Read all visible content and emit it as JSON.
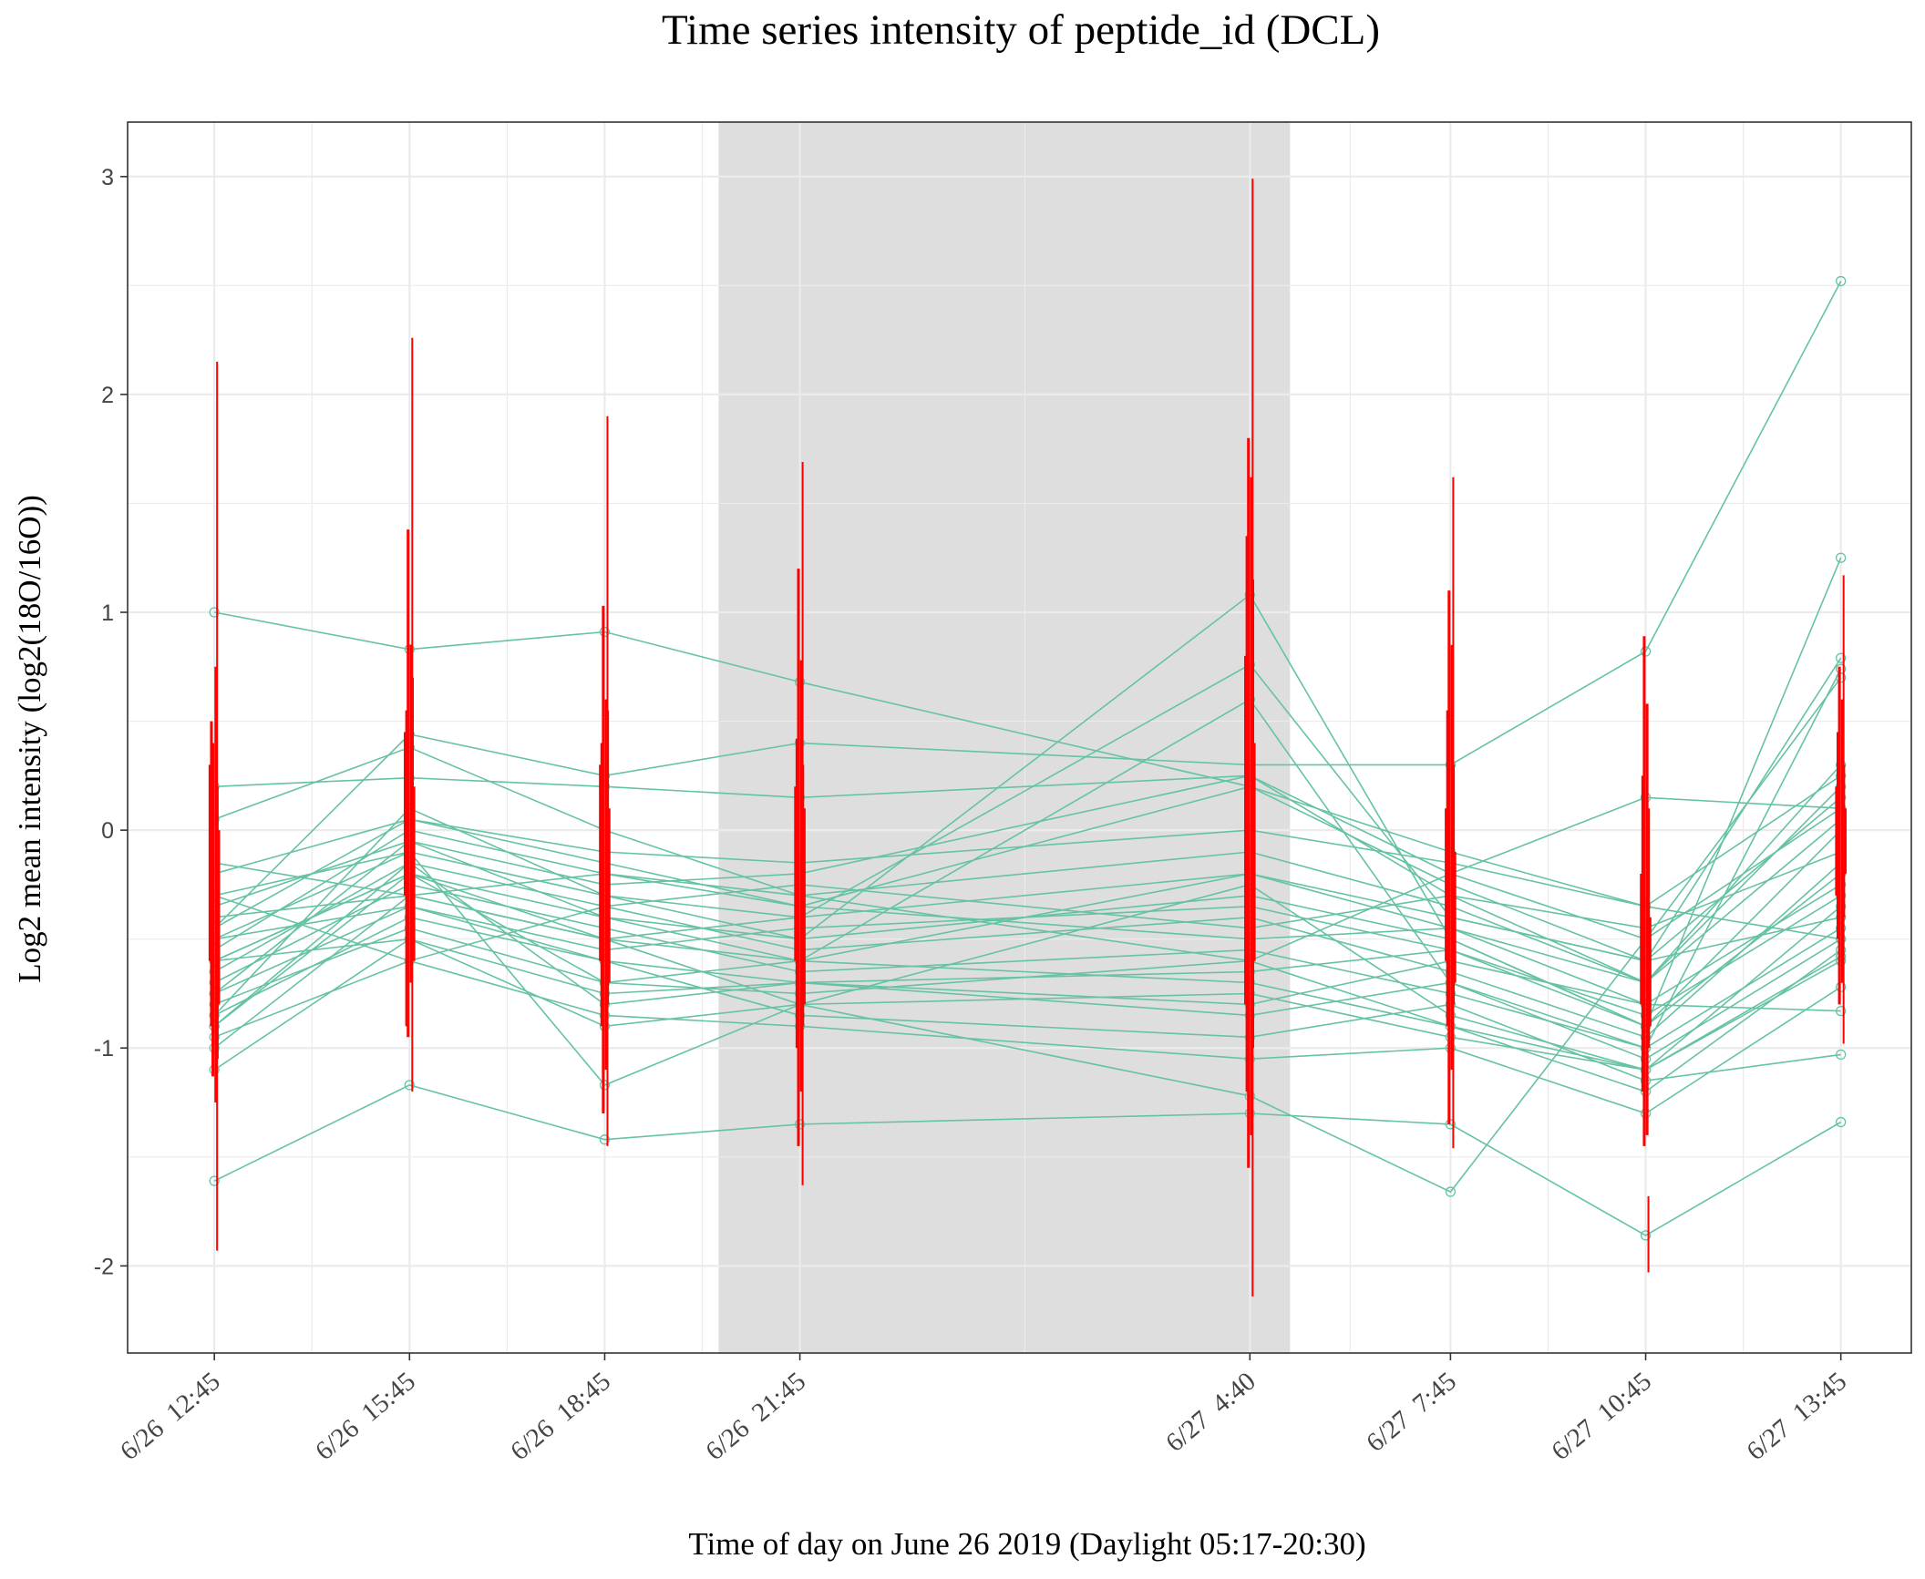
{
  "colors": {
    "series_line": "#66c2a5",
    "error_bar": "#ff0000",
    "night_band": "#dcdcdc",
    "grid": "#ebebeb",
    "panel_border": "#333333"
  },
  "chart_data": {
    "type": "line",
    "title": "Time series intensity of peptide_id (DCL)",
    "xlabel": "Time of day on June 26 2019 (Daylight 05:17-20:30)",
    "ylabel": "Log2 mean intensity (log2(18O/16O))",
    "x": [
      "2019-06-26 12:45",
      "2019-06-26 15:45",
      "2019-06-26 18:45",
      "2019-06-26 21:45",
      "2019-06-27 04:40",
      "2019-06-27 07:45",
      "2019-06-27 10:45",
      "2019-06-27 13:45"
    ],
    "x_tick_labels": [
      "6/26  12:45",
      "6/26  15:45",
      "6/26  18:45",
      "6/26  21:45",
      "6/27  4:40",
      "6/27  7:45",
      "6/27  10:45",
      "6/27  13:45"
    ],
    "xlim": [
      "2019-06-26 11:25",
      "2019-06-27 14:50"
    ],
    "ylim": [
      -2.4,
      3.25
    ],
    "y_ticks": [
      -2,
      -1,
      0,
      1,
      2,
      3
    ],
    "shaded_region": {
      "from": "2019-06-26 20:30",
      "to": "2019-06-27 05:17",
      "label": ""
    },
    "grid": true,
    "legend": "none",
    "series": [
      {
        "values": [
          1.0,
          0.83,
          0.91,
          0.68,
          0.2,
          -0.1,
          -0.35,
          -0.5
        ]
      },
      {
        "values": [
          -1.61,
          -1.17,
          -1.42,
          -1.35,
          -1.3,
          -1.35,
          -1.86,
          -1.34
        ]
      },
      {
        "values": [
          0.2,
          0.24,
          0.2,
          0.15,
          0.25,
          -0.3,
          -0.7,
          0.2
        ]
      },
      {
        "values": [
          -0.45,
          0.44,
          0.25,
          0.4,
          0.3,
          0.3,
          0.82,
          2.52
        ]
      },
      {
        "values": [
          -0.85,
          0.1,
          -0.3,
          -0.5,
          1.08,
          -0.5,
          -0.9,
          1.25
        ]
      },
      {
        "values": [
          -0.6,
          -0.2,
          -0.5,
          -0.4,
          0.76,
          -0.4,
          -0.6,
          0.79
        ]
      },
      {
        "values": [
          -0.9,
          -0.2,
          -0.7,
          -0.6,
          0.6,
          -0.7,
          -1.0,
          0.74
        ]
      },
      {
        "values": [
          -0.5,
          -0.1,
          -1.17,
          -0.8,
          -1.22,
          -1.66,
          -0.5,
          0.7
        ]
      },
      {
        "values": [
          -0.75,
          -0.35,
          -0.6,
          -0.85,
          -0.95,
          -0.8,
          -1.15,
          -1.03
        ]
      },
      {
        "values": [
          -1.1,
          -0.5,
          -0.75,
          -0.7,
          -0.8,
          -0.6,
          -0.8,
          -0.83
        ]
      },
      {
        "values": [
          -0.3,
          -0.1,
          -0.3,
          -0.4,
          -0.2,
          -0.4,
          -0.6,
          -0.4
        ]
      },
      {
        "values": [
          -0.4,
          -0.3,
          -0.5,
          -0.6,
          -0.7,
          -0.9,
          -1.1,
          -0.6
        ]
      },
      {
        "values": [
          -0.6,
          -0.2,
          -0.4,
          -0.5,
          -0.3,
          -0.5,
          -0.9,
          -0.2
        ]
      },
      {
        "values": [
          -0.55,
          0.0,
          -0.2,
          -0.3,
          -0.1,
          -0.35,
          -0.7,
          0.05
        ]
      },
      {
        "values": [
          -0.7,
          -0.25,
          -0.45,
          -0.65,
          -0.55,
          -0.75,
          -1.0,
          -0.45
        ]
      },
      {
        "values": [
          -0.8,
          -0.45,
          -0.7,
          -0.75,
          -0.6,
          -0.9,
          -1.2,
          -0.55
        ]
      },
      {
        "values": [
          -0.35,
          -0.05,
          -0.25,
          -0.2,
          0.25,
          -0.2,
          -0.5,
          0.1
        ]
      },
      {
        "values": [
          -0.95,
          -0.6,
          -0.85,
          -0.9,
          -1.05,
          -1.0,
          -1.3,
          -0.72
        ]
      },
      {
        "values": [
          -0.2,
          0.05,
          -0.1,
          -0.15,
          0.0,
          -0.15,
          -0.35,
          0.25
        ]
      },
      {
        "values": [
          -0.5,
          -0.35,
          -0.55,
          -0.45,
          -0.35,
          -0.55,
          -0.85,
          -0.3
        ]
      },
      {
        "values": [
          -0.65,
          -0.15,
          -0.35,
          -0.55,
          -0.4,
          -0.65,
          -0.95,
          -0.15
        ]
      },
      {
        "values": [
          -0.85,
          -0.4,
          -0.6,
          -0.7,
          -0.85,
          -0.7,
          -1.05,
          -0.5
        ]
      },
      {
        "values": [
          -1.0,
          -0.3,
          -0.5,
          -0.8,
          -0.25,
          -0.85,
          -1.1,
          -0.35
        ]
      },
      {
        "values": [
          -0.45,
          0.05,
          -0.15,
          -0.35,
          0.2,
          -0.25,
          -0.6,
          0.15
        ]
      },
      {
        "values": [
          -0.6,
          -0.5,
          -0.9,
          -0.8,
          -0.75,
          -0.95,
          -1.1,
          -0.58
        ]
      },
      {
        "values": [
          -0.3,
          -0.6,
          -0.35,
          -0.25,
          -0.45,
          -0.3,
          -0.45,
          -0.1
        ]
      },
      {
        "values": [
          -0.75,
          -0.05,
          -0.4,
          -0.6,
          -0.2,
          -0.45,
          -0.7,
          0.3
        ]
      },
      {
        "values": [
          0.05,
          0.38,
          0.0,
          -0.3,
          -0.6,
          -0.2,
          0.15,
          0.1
        ]
      },
      {
        "values": [
          -0.15,
          -0.3,
          -0.2,
          -0.35,
          -0.5,
          -0.45,
          -0.8,
          -0.25
        ]
      },
      {
        "values": [
          -0.9,
          -0.15,
          -0.8,
          -0.7,
          -0.65,
          -0.55,
          -0.9,
          0.0
        ]
      }
    ],
    "error_bars": [
      [
        [
          -1.93,
          2.15
        ],
        [
          -1.13,
          0.4
        ],
        [
          -1.25,
          0.75
        ],
        [
          -0.9,
          0.5
        ],
        [
          -1.05,
          0.2
        ],
        [
          -0.6,
          0.3
        ],
        [
          -0.8,
          0.0
        ]
      ],
      [
        [
          -1.2,
          2.26
        ],
        [
          -0.95,
          1.38
        ],
        [
          -0.7,
          0.85
        ],
        [
          -0.9,
          0.55
        ],
        [
          -0.5,
          0.7
        ],
        [
          -0.3,
          0.45
        ],
        [
          -0.6,
          0.2
        ]
      ],
      [
        [
          -1.45,
          1.9
        ],
        [
          -1.3,
          1.03
        ],
        [
          -1.1,
          0.6
        ],
        [
          -0.9,
          0.4
        ],
        [
          -0.8,
          0.55
        ],
        [
          -0.6,
          0.3
        ],
        [
          -0.7,
          0.1
        ]
      ],
      [
        [
          -1.63,
          1.69
        ],
        [
          -1.45,
          1.2
        ],
        [
          -1.2,
          0.78
        ],
        [
          -1.0,
          0.42
        ],
        [
          -0.9,
          0.3
        ],
        [
          -0.6,
          0.2
        ],
        [
          -0.8,
          0.1
        ]
      ],
      [
        [
          -2.14,
          2.99
        ],
        [
          -1.55,
          1.8
        ],
        [
          -1.4,
          1.62
        ],
        [
          -1.2,
          1.35
        ],
        [
          -1.0,
          1.15
        ],
        [
          -0.8,
          0.8
        ],
        [
          -0.6,
          0.4
        ]
      ],
      [
        [
          -1.46,
          1.62
        ],
        [
          -1.35,
          1.1
        ],
        [
          -1.1,
          0.85
        ],
        [
          -0.9,
          0.55
        ],
        [
          -0.8,
          0.3
        ],
        [
          -0.6,
          0.1
        ],
        [
          -0.7,
          -0.1
        ]
      ],
      [
        [
          -2.03,
          -1.68
        ],
        [
          -1.45,
          0.89
        ],
        [
          -1.4,
          0.58
        ],
        [
          -1.2,
          0.25
        ],
        [
          -1.0,
          0.1
        ],
        [
          -0.8,
          -0.2
        ],
        [
          -0.9,
          -0.4
        ]
      ],
      [
        [
          -0.98,
          1.17
        ],
        [
          -0.8,
          0.75
        ],
        [
          -0.7,
          0.6
        ],
        [
          -0.5,
          0.45
        ],
        [
          -0.4,
          0.3
        ],
        [
          -0.3,
          0.2
        ],
        [
          -0.2,
          0.1
        ]
      ]
    ]
  }
}
